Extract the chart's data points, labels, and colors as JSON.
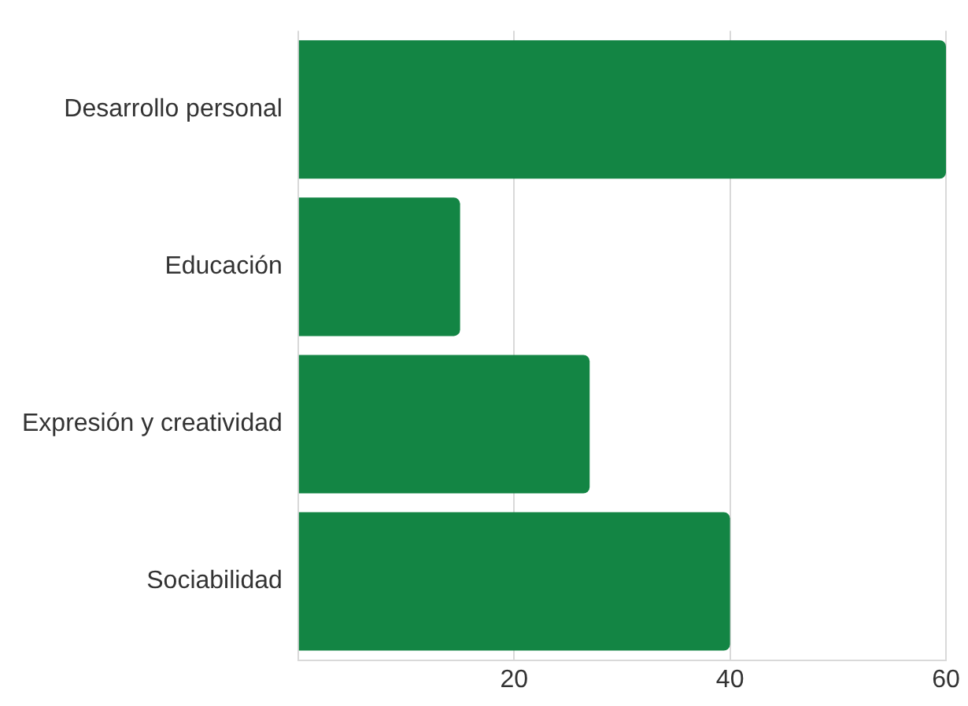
{
  "chart_data": {
    "type": "bar",
    "orientation": "horizontal",
    "categories": [
      "Desarrollo personal",
      "Educación",
      "Expresión y creatividad",
      "Sociabilidad"
    ],
    "values": [
      60,
      15,
      27,
      40
    ],
    "color": "#138544",
    "xlim": [
      0,
      60
    ],
    "xticks": [
      {
        "value": 0,
        "label": null
      },
      20,
      40,
      60
    ],
    "grid": "x"
  }
}
